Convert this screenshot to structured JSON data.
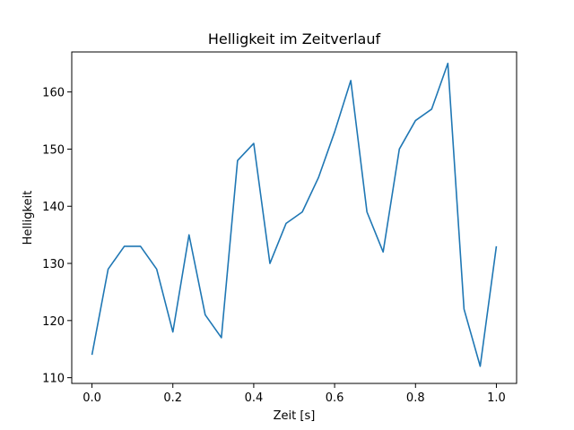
{
  "chart_data": {
    "type": "line",
    "title": "Helligkeit im Zeitverlauf",
    "xlabel": "Zeit [s]",
    "ylabel": "Helligkeit",
    "grid": false,
    "xlim": [
      -0.05,
      1.05
    ],
    "ylim": [
      109,
      167
    ],
    "xticks": [
      0.0,
      0.2,
      0.4,
      0.6,
      0.8,
      1.0
    ],
    "xtick_labels": [
      "0.0",
      "0.2",
      "0.4",
      "0.6",
      "0.8",
      "1.0"
    ],
    "yticks": [
      110,
      120,
      130,
      140,
      150,
      160
    ],
    "ytick_labels": [
      "110",
      "120",
      "130",
      "140",
      "150",
      "160"
    ],
    "series": [
      {
        "color": "#1f77b4",
        "x": [
          0.0,
          0.04,
          0.08,
          0.12,
          0.16,
          0.2,
          0.24,
          0.28,
          0.32,
          0.36,
          0.4,
          0.44,
          0.48,
          0.52,
          0.56,
          0.6,
          0.64,
          0.68,
          0.72,
          0.76,
          0.8,
          0.84,
          0.88,
          0.92,
          0.96,
          1.0
        ],
        "y": [
          114,
          129,
          133,
          133,
          129,
          118,
          135,
          121,
          117,
          148,
          151,
          130,
          137,
          139,
          145,
          153,
          162,
          139,
          132,
          150,
          155,
          157,
          165,
          122,
          112,
          133
        ]
      }
    ]
  }
}
